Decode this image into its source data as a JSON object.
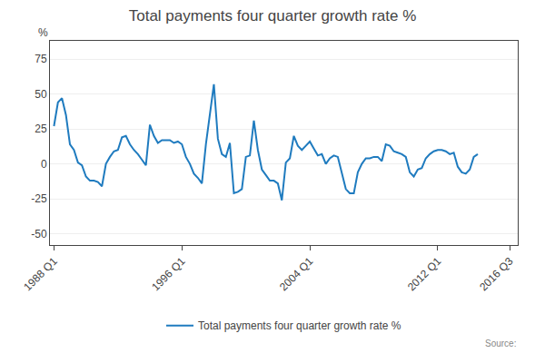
{
  "chart_data": {
    "type": "line",
    "title": "Total payments four quarter growth rate %",
    "y_label": "%",
    "source": "Source:",
    "x": [
      0,
      1,
      2,
      3,
      4,
      5,
      6,
      7,
      8,
      9,
      10,
      11,
      12,
      13,
      14,
      15,
      16,
      17,
      18,
      19,
      20,
      21,
      22,
      23,
      24,
      25,
      26,
      27,
      28,
      29,
      30,
      31,
      32,
      33,
      34,
      35,
      36,
      37,
      38,
      39,
      40,
      41,
      42,
      43,
      44,
      45,
      46,
      47,
      48,
      49,
      50,
      51,
      52,
      53,
      54,
      55,
      56,
      57,
      58,
      59,
      60,
      61,
      62,
      63,
      64,
      65,
      66,
      67,
      68,
      69,
      70,
      71,
      72,
      73,
      74,
      75,
      76,
      77,
      78,
      79,
      80,
      81,
      82,
      83,
      84,
      85,
      86,
      87,
      88,
      89,
      90,
      91,
      92,
      93,
      94,
      95,
      96,
      97,
      98,
      99,
      100,
      101,
      102,
      103,
      104,
      105,
      106
    ],
    "series": [
      {
        "name": "Total payments four quarter growth rate %",
        "color": "#1f7bbf",
        "values": [
          27,
          44,
          47,
          35,
          14,
          10,
          1,
          -1,
          -9,
          -12,
          -12,
          -13,
          -16,
          0,
          5,
          9,
          10,
          19,
          20,
          14,
          10,
          7,
          3,
          -1,
          28,
          20,
          15,
          17,
          17,
          17,
          15,
          16,
          14,
          5,
          0,
          -7,
          -10,
          -14,
          14,
          35,
          57,
          18,
          7,
          5,
          15,
          -21,
          -20,
          -18,
          5,
          6,
          31,
          10,
          -4,
          -8,
          -12,
          -12,
          -14,
          -26,
          1,
          4,
          20,
          13,
          10,
          13,
          16,
          11,
          6,
          7,
          0,
          4,
          6,
          5,
          -6,
          -18,
          -21,
          -21,
          -6,
          0,
          4,
          4,
          5,
          5,
          2,
          14,
          13,
          9,
          8,
          7,
          5,
          -6,
          -9,
          -4,
          -3,
          4,
          7,
          9,
          10,
          10,
          9,
          7,
          8,
          -2,
          -6,
          -7,
          -4,
          5,
          7
        ]
      }
    ],
    "xlim": [
      -1,
      116
    ],
    "xticks": [
      {
        "value": 0,
        "label": "1988 Q1"
      },
      {
        "value": 32,
        "label": "1996 Q1"
      },
      {
        "value": 64,
        "label": "2004 Q1"
      },
      {
        "value": 96,
        "label": "2012 Q1"
      },
      {
        "value": 114,
        "label": "2016 Q3"
      }
    ],
    "ylim": [
      -58,
      88
    ],
    "yticks": [
      -50,
      -25,
      0,
      25,
      50,
      75
    ],
    "grid": "y",
    "legend": "bottom"
  }
}
